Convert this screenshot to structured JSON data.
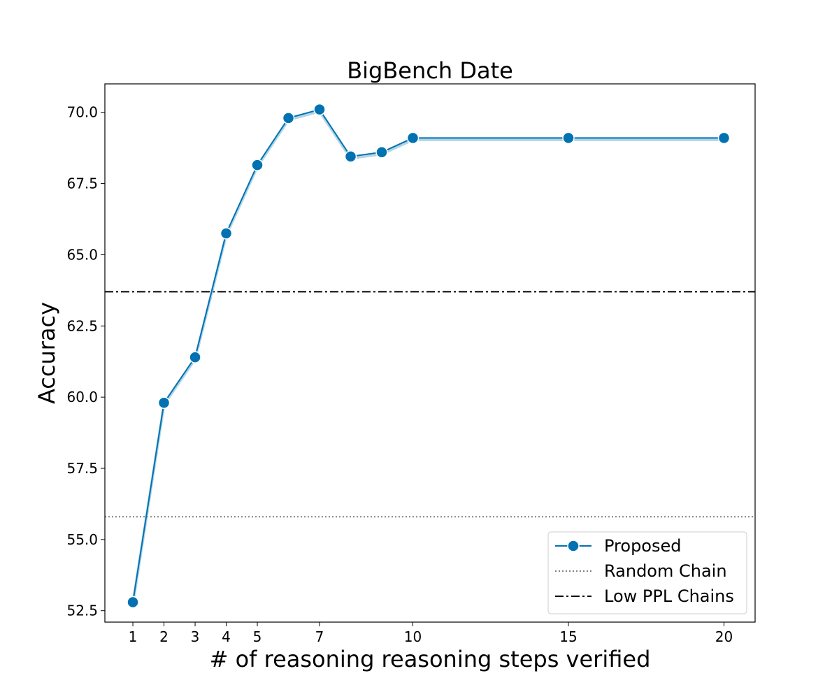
{
  "chart_data": {
    "type": "line",
    "title": "BigBench Date",
    "xlabel": "# of reasoning reasoning steps verified",
    "ylabel": "Accuracy",
    "xlim": [
      0.1,
      21.0
    ],
    "ylim": [
      52.1,
      71.0
    ],
    "xticks": [
      1,
      2,
      3,
      4,
      5,
      7,
      10,
      15,
      20
    ],
    "yticks": [
      52.5,
      55.0,
      57.5,
      60.0,
      62.5,
      65.0,
      67.5,
      70.0
    ],
    "ytick_labels": [
      "52.5",
      "55.0",
      "57.5",
      "60.0",
      "62.5",
      "65.0",
      "67.5",
      "70.0"
    ],
    "grid": false,
    "legend_position": "lower-right",
    "series": [
      {
        "name": "Proposed",
        "style": "line-marker",
        "color": "#0072b2",
        "band_color": "#9ecae1",
        "x": [
          1,
          2,
          3,
          4,
          5,
          6,
          7,
          8,
          9,
          10,
          15,
          20
        ],
        "y": [
          52.8,
          59.8,
          61.4,
          65.75,
          68.15,
          69.8,
          70.1,
          68.45,
          68.6,
          69.1,
          69.1,
          69.1
        ]
      }
    ],
    "reference_lines": [
      {
        "name": "Random Chain",
        "y": 55.8,
        "style": "dotted",
        "color": "#808080"
      },
      {
        "name": "Low PPL Chains",
        "y": 63.7,
        "style": "dashdot",
        "color": "#000000"
      }
    ]
  }
}
